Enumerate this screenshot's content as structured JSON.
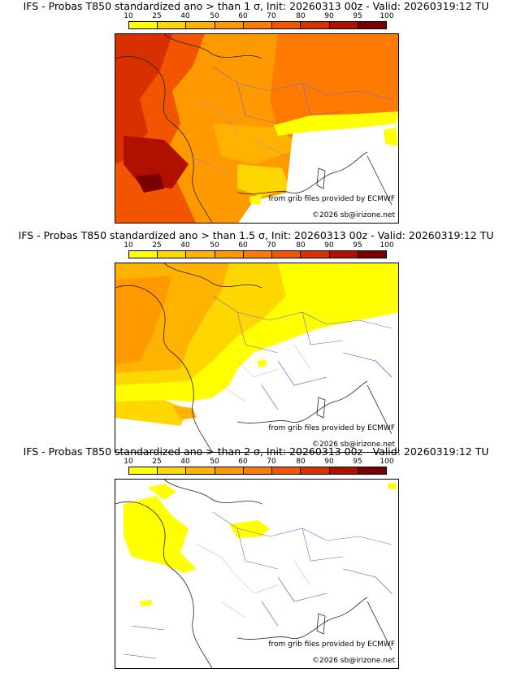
{
  "colorbar": {
    "ticks": [
      "10",
      "25",
      "40",
      "50",
      "60",
      "70",
      "80",
      "90",
      "95",
      "100"
    ],
    "colors": [
      "#ffff00",
      "#ffd700",
      "#ffb300",
      "#ff9900",
      "#ff7a00",
      "#f25500",
      "#d93000",
      "#b01000",
      "#7a0000"
    ]
  },
  "panels": [
    {
      "title": "IFS - Probas T850  standardized ano > than 1 σ, Init: 20260313 00z - Valid: 20260319:12 TU",
      "credit": "from grib files provided by ECMWF",
      "copyright": "©2026 sb@irizone.net"
    },
    {
      "title": "IFS - Probas T850  standardized ano > than 1.5 σ, Init: 20260313 00z - Valid: 20260319:12 TU",
      "credit": "from grib files provided by ECMWF",
      "copyright": "©2026 sb@irizone.net"
    },
    {
      "title": "IFS - Probas T850  standardized ano > than 2 σ, Init: 20260313 00z - Valid: 20260319:12 TU",
      "credit": "from grib files provided by ECMWF",
      "copyright": "©2026 sb@irizone.net"
    }
  ]
}
